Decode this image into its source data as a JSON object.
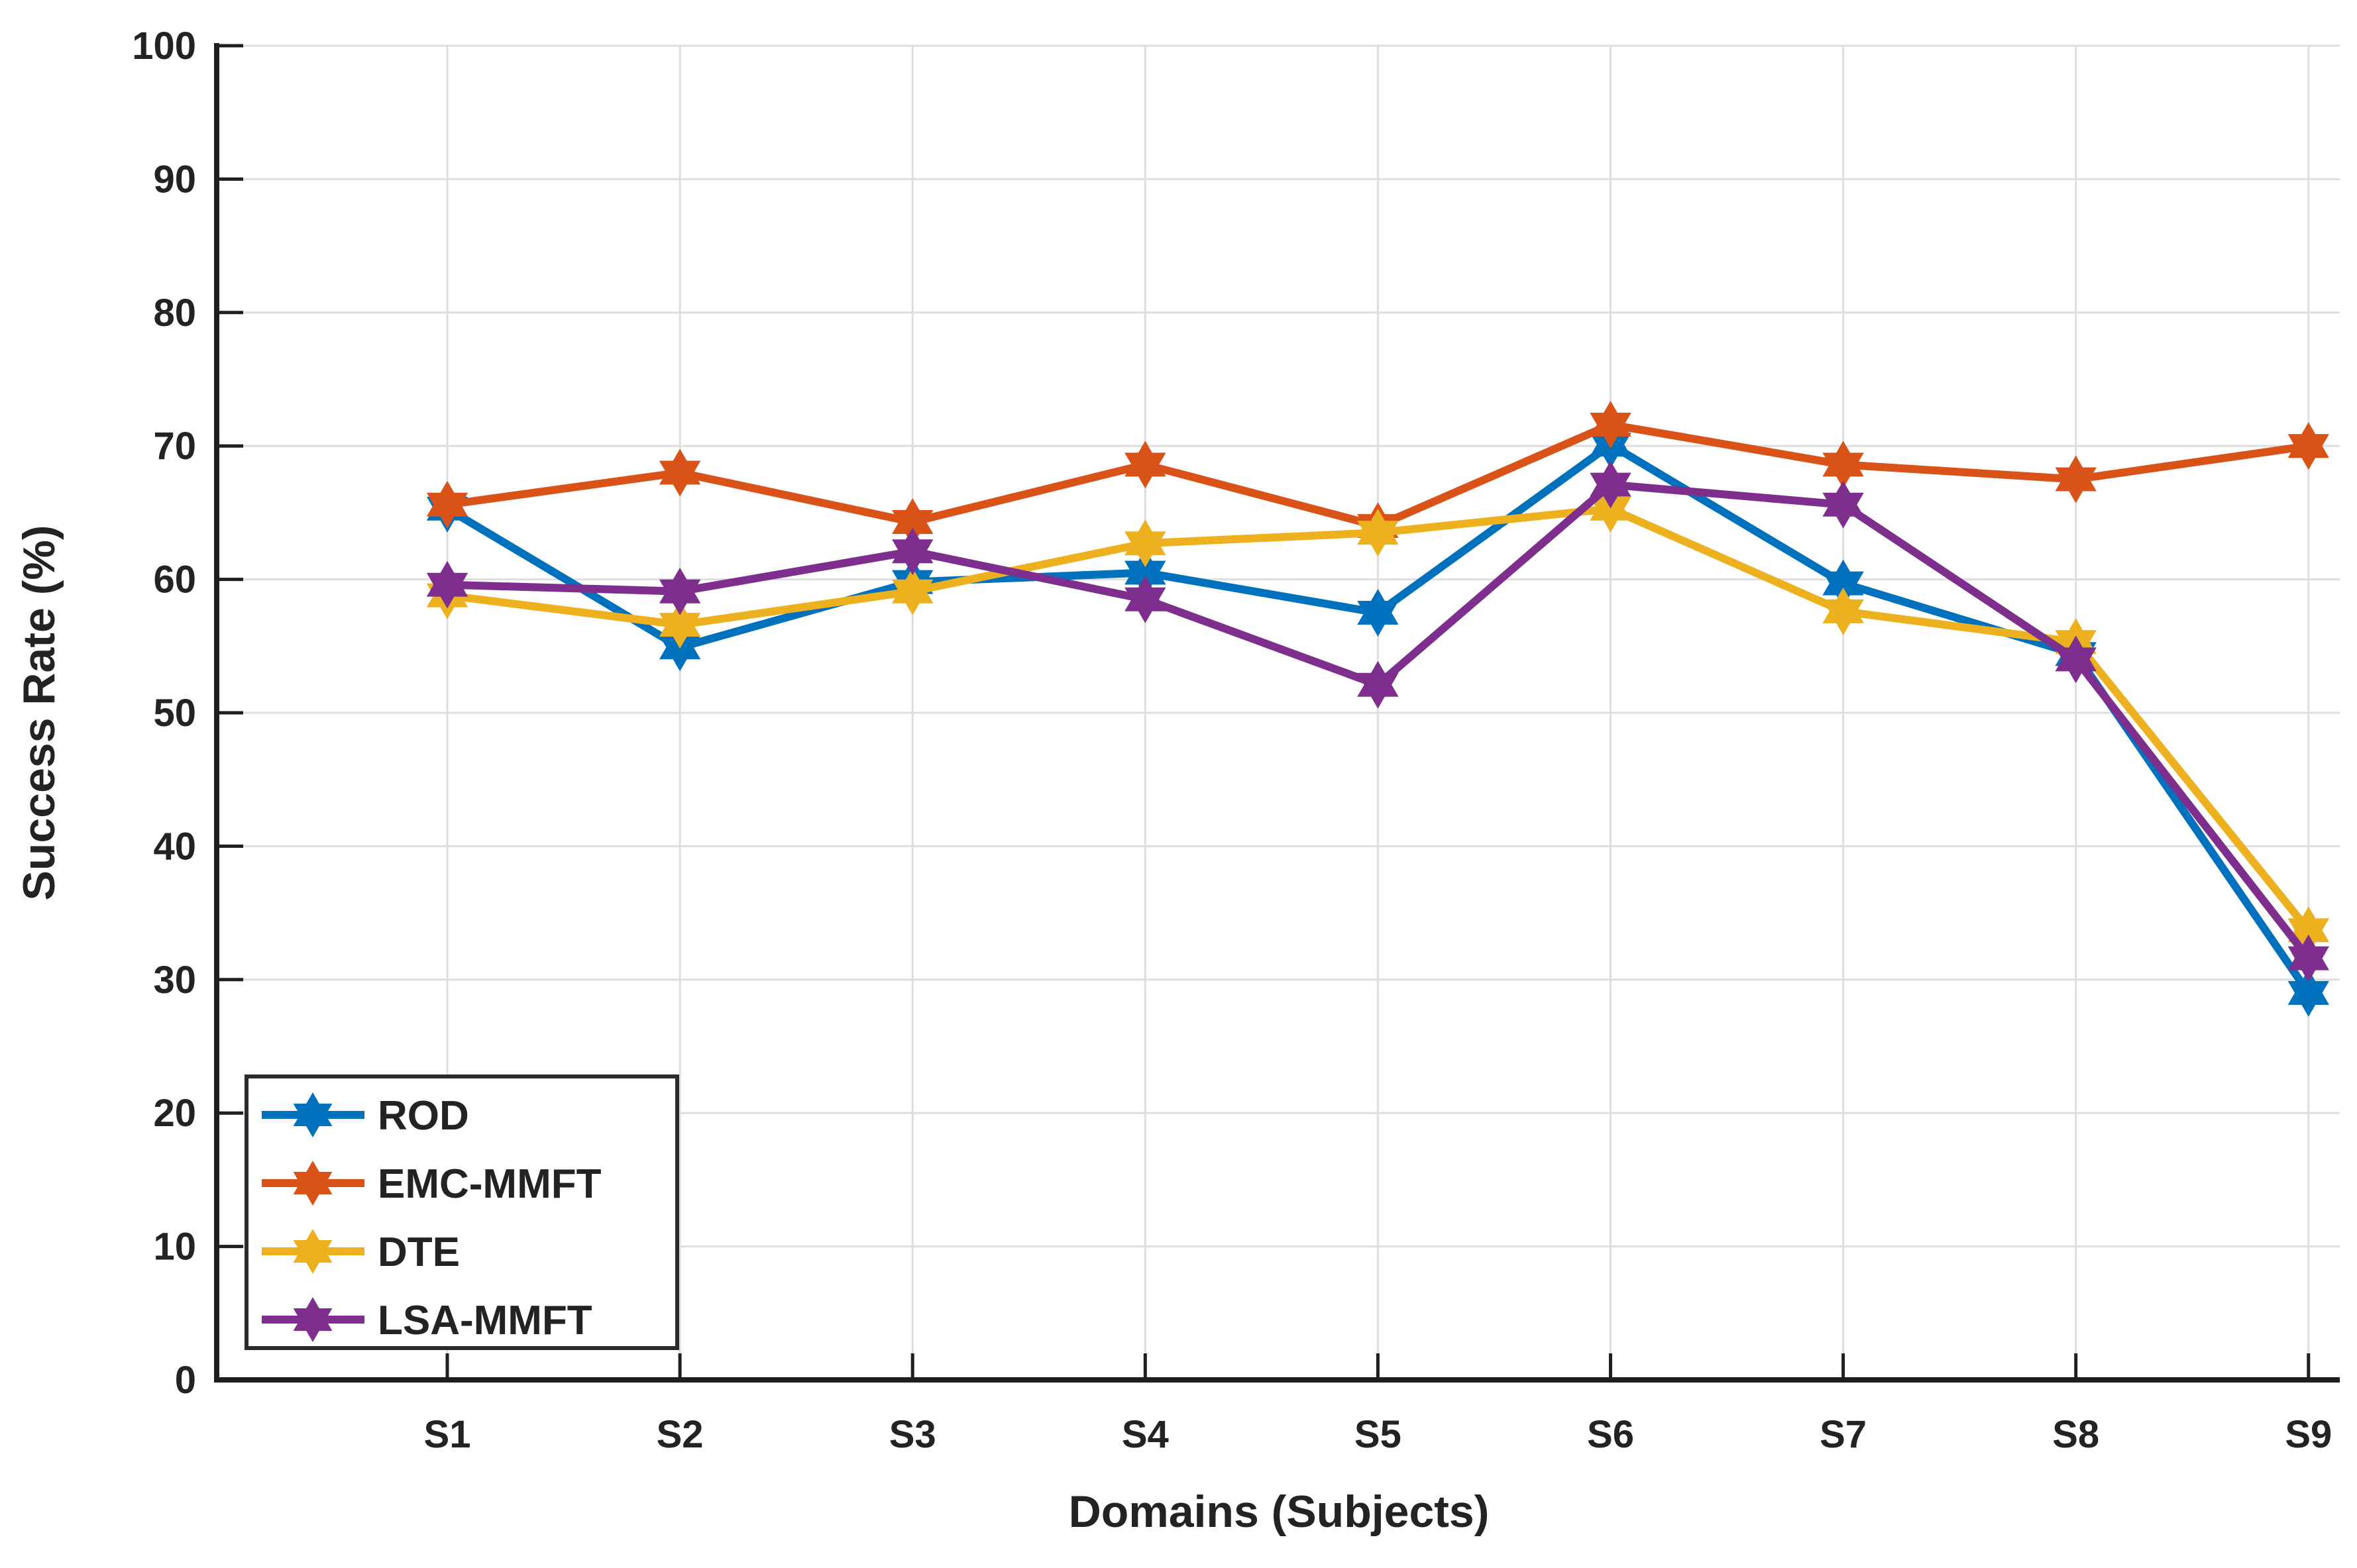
{
  "chart_data": {
    "type": "line",
    "title": "",
    "xlabel": "Domains (Subjects)",
    "ylabel": "Success Rate (%)",
    "categories": [
      "S1",
      "S2",
      "S3",
      "S4",
      "S5",
      "S6",
      "S7",
      "S8",
      "S9"
    ],
    "ylim": [
      0,
      100
    ],
    "yticks": [
      0,
      10,
      20,
      30,
      40,
      50,
      60,
      70,
      80,
      90,
      100
    ],
    "grid": true,
    "marker": "hexagram",
    "legend_position": "lower-left",
    "series": [
      {
        "name": "ROD",
        "color": "#0072BD",
        "values": [
          65.3,
          54.9,
          59.8,
          60.5,
          57.5,
          70.1,
          59.7,
          54.4,
          29.0
        ]
      },
      {
        "name": "EMC-MMFT",
        "color": "#D95319",
        "values": [
          65.6,
          68.0,
          64.3,
          68.6,
          64.0,
          71.6,
          68.6,
          67.5,
          70.0
        ]
      },
      {
        "name": "DTE",
        "color": "#EDB120",
        "values": [
          58.8,
          56.6,
          59.1,
          62.7,
          63.5,
          65.3,
          57.6,
          55.3,
          33.7
        ]
      },
      {
        "name": "LSA-MMFT",
        "color": "#7E2F8E",
        "values": [
          59.6,
          59.1,
          62.1,
          58.5,
          52.1,
          67.1,
          65.6,
          54.0,
          31.6
        ]
      }
    ],
    "axis_color": "#1f1f1f",
    "grid_color": "#dedede"
  }
}
